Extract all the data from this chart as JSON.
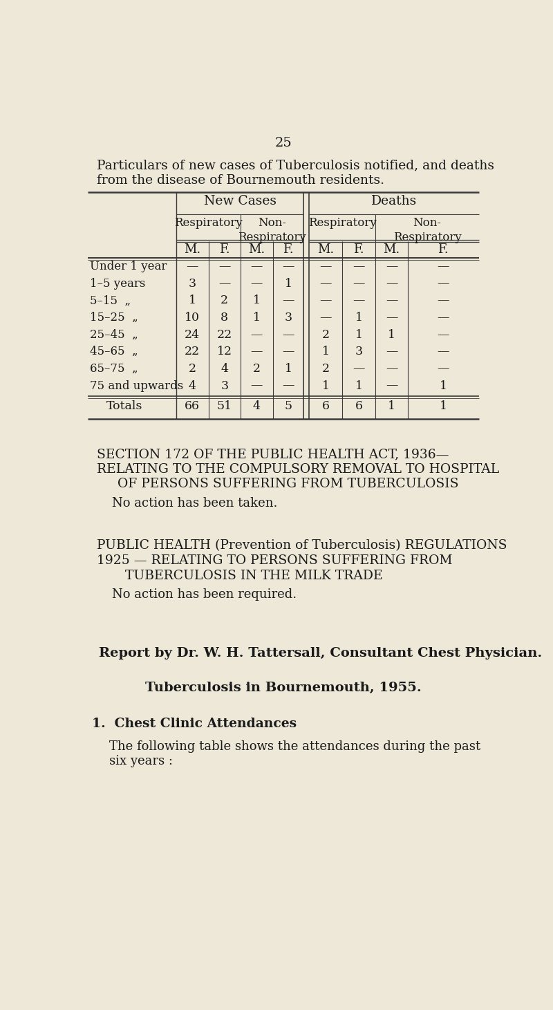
{
  "bg_color": "#ede8d8",
  "page_number": "25",
  "intro_text_line1": "Particulars of new cases of Tuberculosis notified, and deaths",
  "intro_text_line2": "from the disease of Bournemouth residents.",
  "table": {
    "rows": [
      [
        "Under 1 year",
        "—",
        "—",
        "—",
        "—",
        "—",
        "—",
        "—",
        "—"
      ],
      [
        "1–5 years",
        "3",
        "—",
        "—",
        "1",
        "—",
        "—",
        "—",
        "—"
      ],
      [
        "5–15  „",
        "1",
        "2",
        "1",
        "—",
        "—",
        "—",
        "—",
        "—"
      ],
      [
        "15–25  „",
        "10",
        "8",
        "1",
        "3",
        "—",
        "1",
        "—",
        "—"
      ],
      [
        "25–45  „",
        "24",
        "22",
        "—",
        "—",
        "2",
        "1",
        "1",
        "—"
      ],
      [
        "45–65  „",
        "22",
        "12",
        "—",
        "—",
        "1",
        "3",
        "—",
        "—"
      ],
      [
        "65–75  „",
        "2",
        "4",
        "2",
        "1",
        "2",
        "—",
        "—",
        "—"
      ],
      [
        "75 and upwards",
        "4",
        "3",
        "—",
        "—",
        "1",
        "1",
        "—",
        "1"
      ]
    ],
    "totals_row": [
      "Totals",
      "66",
      "51",
      "4",
      "5",
      "6",
      "6",
      "1",
      "1"
    ]
  },
  "section_line1": "SECTION 172 OF THE PUBLIC HEALTH ACT, 1936—",
  "section_line2": "RELATING TO THE COMPULSORY REMOVAL TO HOSPITAL",
  "section_line3": "OF PERSONS SUFFERING FROM TUBERCULOSIS",
  "no_action_1": "No action has been taken.",
  "public_line1": "PUBLIC HEALTH (Prevention of Tuberculosis) REGULATIONS",
  "public_line2": "1925 — RELATING TO PERSONS SUFFERING FROM",
  "public_line3": "TUBERCULOSIS IN THE MILK TRADE",
  "no_action_2": "No action has been required.",
  "report_by": "Report by Dr. W. H. Tattersall, Consultant Chest Physician.",
  "tuberculosis_title": "Tuberculosis in Bournemouth, 1955.",
  "section_1_title": "1.  Chest Clinic Attendances",
  "section_1_body_line1": "The following table shows the attendances during the past",
  "section_1_body_line2": "six years :"
}
